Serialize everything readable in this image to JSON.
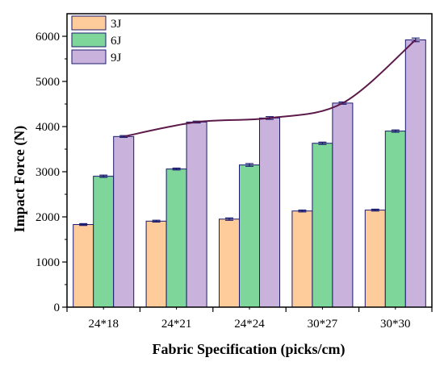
{
  "chart_data": {
    "type": "bar",
    "xlabel": "Fabric Specification (picks/cm)",
    "ylabel": "Impact Force (N)",
    "categories": [
      "24*18",
      "24*21",
      "24*24",
      "30*27",
      "30*30"
    ],
    "ylim": [
      0,
      6500
    ],
    "yticks": [
      0,
      1000,
      2000,
      3000,
      4000,
      5000,
      6000
    ],
    "series": [
      {
        "name": "3J",
        "color": "#fdcc9a",
        "values": [
          1830,
          1905,
          1950,
          2130,
          2150
        ],
        "errors": [
          20,
          20,
          25,
          20,
          20
        ]
      },
      {
        "name": "6J",
        "color": "#7fd69b",
        "values": [
          2900,
          3060,
          3150,
          3630,
          3900
        ],
        "errors": [
          25,
          20,
          30,
          25,
          25
        ]
      },
      {
        "name": "9J",
        "color": "#c9b3dd",
        "values": [
          3780,
          4100,
          4190,
          4520,
          5920
        ],
        "errors": [
          20,
          20,
          30,
          25,
          40
        ]
      }
    ],
    "trend_line": {
      "series": "9J",
      "color": "#5c1a4a"
    },
    "legend": {
      "position": "top-left"
    },
    "grid": false
  }
}
